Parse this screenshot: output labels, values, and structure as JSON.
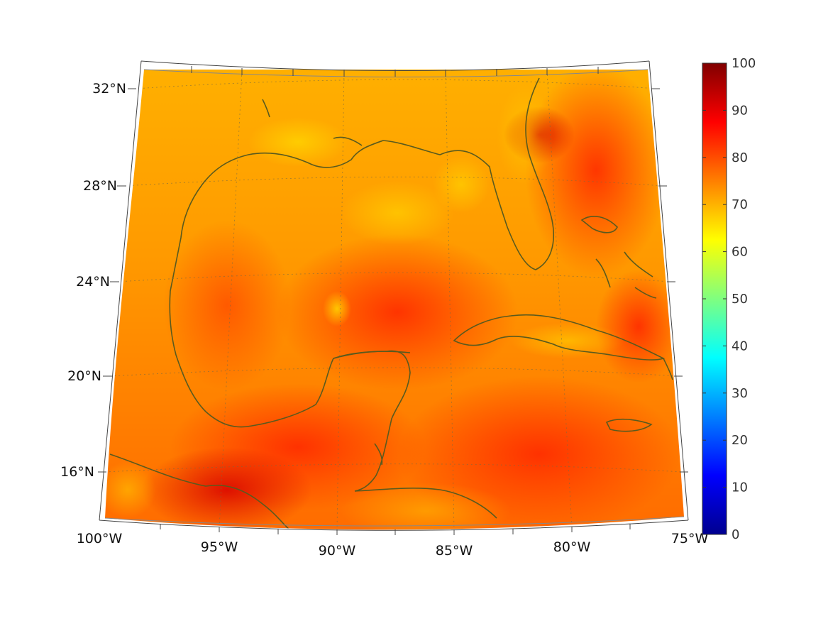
{
  "map": {
    "lat_labels": [
      "32°N",
      "28°N",
      "24°N",
      "20°N",
      "16°N"
    ],
    "lon_labels": [
      "100°W",
      "95°W",
      "90°W",
      "85°W",
      "80°W",
      "75°W"
    ],
    "extent": {
      "lon_min": -100,
      "lon_max": -75,
      "lat_min": 14,
      "lat_max": 33
    },
    "projection": "conic",
    "coastline_color": "#5a5a1e",
    "graticule": "dotted"
  },
  "colorbar": {
    "min": 0,
    "max": 100,
    "ticks": [
      "0",
      "10",
      "20",
      "30",
      "40",
      "50",
      "60",
      "70",
      "80",
      "90",
      "100"
    ],
    "colormap": "jet",
    "colors": [
      "#00008f",
      "#0000ff",
      "#00ffff",
      "#ffff00",
      "#ff0000",
      "#800000"
    ]
  }
}
